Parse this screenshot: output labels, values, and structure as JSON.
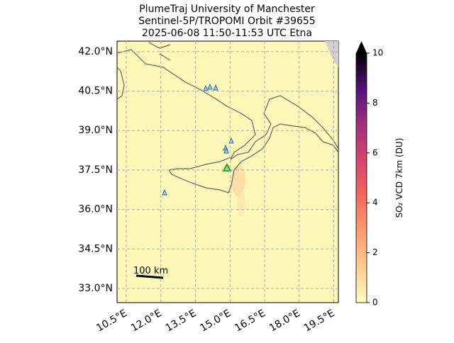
{
  "map": {
    "title": [
      "PlumeTraj    University of Manchester",
      "Sentinel-5P/TROPOMI Orbit #39655",
      "2025-06-08    11:50-11:53 UTC    Etna"
    ],
    "lonlim": [
      10.1,
      19.7
    ],
    "latlim": [
      32.46,
      42.4
    ],
    "lat_ticks": [
      {
        "value": 42.0,
        "label": "42.0°N"
      },
      {
        "value": 40.5,
        "label": "40.5°N"
      },
      {
        "value": 39.0,
        "label": "39.0°N"
      },
      {
        "value": 37.5,
        "label": "37.5°N"
      },
      {
        "value": 36.0,
        "label": "36.0°N"
      },
      {
        "value": 34.5,
        "label": "34.5°N"
      },
      {
        "value": 33.0,
        "label": "33.0°N"
      }
    ],
    "lon_ticks": [
      {
        "value": 10.5,
        "label": "10.5°E"
      },
      {
        "value": 12.0,
        "label": "12.0°E"
      },
      {
        "value": 13.5,
        "label": "13.5°E"
      },
      {
        "value": 15.0,
        "label": "15.0°E"
      },
      {
        "value": 16.5,
        "label": "16.5°E"
      },
      {
        "value": 18.0,
        "label": "18.0°E"
      },
      {
        "value": 19.5,
        "label": "19.5°E"
      }
    ],
    "scale_bar": "100 km",
    "colorbar": {
      "label": "SO₂ VCD 7km (DU)",
      "lim": [
        0,
        10
      ],
      "ticks": [
        0,
        2,
        4,
        6,
        8,
        10
      ]
    }
  }
}
